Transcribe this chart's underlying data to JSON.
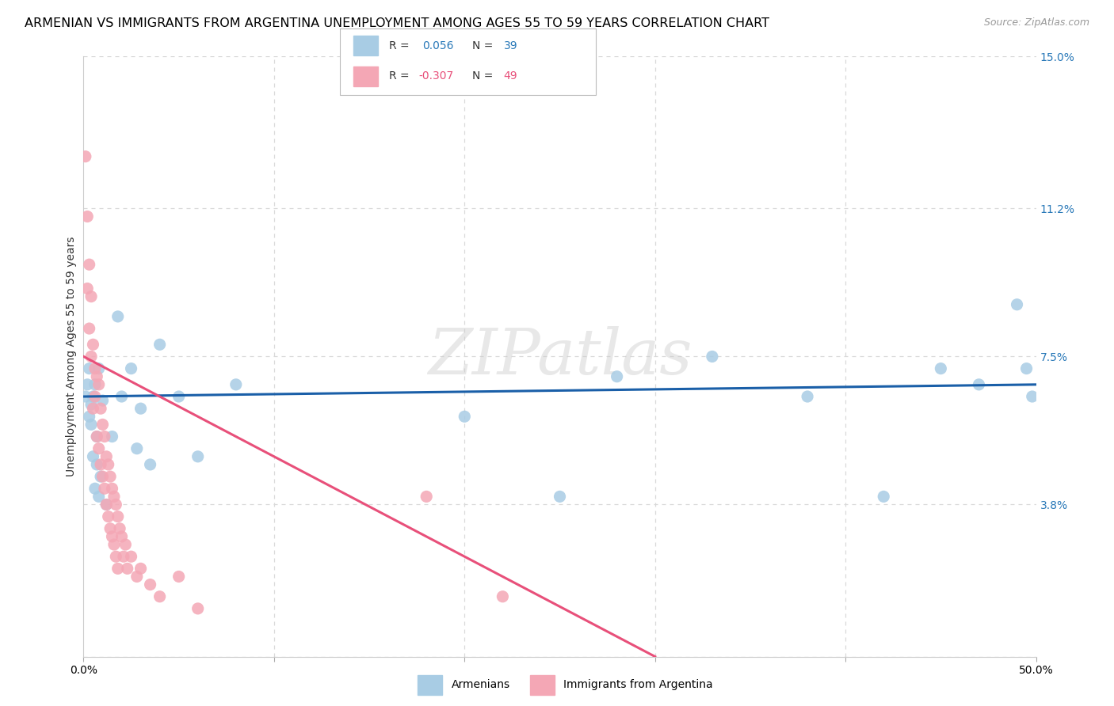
{
  "title": "ARMENIAN VS IMMIGRANTS FROM ARGENTINA UNEMPLOYMENT AMONG AGES 55 TO 59 YEARS CORRELATION CHART",
  "source": "Source: ZipAtlas.com",
  "ylabel": "Unemployment Among Ages 55 to 59 years",
  "xlim": [
    0.0,
    0.5
  ],
  "ylim": [
    0.0,
    0.15
  ],
  "xtick_positions": [
    0.0,
    0.1,
    0.2,
    0.3,
    0.4,
    0.5
  ],
  "xticklabels": [
    "0.0%",
    "",
    "",
    "",
    "",
    "50.0%"
  ],
  "yticks_right": [
    0.0,
    0.038,
    0.075,
    0.112,
    0.15
  ],
  "ytick_right_labels": [
    "",
    "3.8%",
    "7.5%",
    "11.2%",
    "15.0%"
  ],
  "background_color": "#ffffff",
  "grid_color": "#d9d9d9",
  "watermark": "ZIPatlas",
  "armenians_x": [
    0.001,
    0.002,
    0.003,
    0.003,
    0.004,
    0.004,
    0.005,
    0.005,
    0.006,
    0.006,
    0.007,
    0.007,
    0.008,
    0.008,
    0.009,
    0.01,
    0.012,
    0.015,
    0.018,
    0.02,
    0.025,
    0.028,
    0.03,
    0.035,
    0.04,
    0.05,
    0.06,
    0.08,
    0.2,
    0.25,
    0.28,
    0.33,
    0.38,
    0.42,
    0.45,
    0.47,
    0.49,
    0.495,
    0.498
  ],
  "armenians_y": [
    0.065,
    0.068,
    0.06,
    0.072,
    0.063,
    0.058,
    0.065,
    0.05,
    0.068,
    0.042,
    0.055,
    0.048,
    0.072,
    0.04,
    0.045,
    0.064,
    0.038,
    0.055,
    0.085,
    0.065,
    0.072,
    0.052,
    0.062,
    0.048,
    0.078,
    0.065,
    0.05,
    0.068,
    0.06,
    0.04,
    0.07,
    0.075,
    0.065,
    0.04,
    0.072,
    0.068,
    0.088,
    0.072,
    0.065
  ],
  "argentina_x": [
    0.001,
    0.002,
    0.002,
    0.003,
    0.003,
    0.004,
    0.004,
    0.005,
    0.005,
    0.006,
    0.006,
    0.007,
    0.007,
    0.008,
    0.008,
    0.009,
    0.009,
    0.01,
    0.01,
    0.011,
    0.011,
    0.012,
    0.012,
    0.013,
    0.013,
    0.014,
    0.014,
    0.015,
    0.015,
    0.016,
    0.016,
    0.017,
    0.017,
    0.018,
    0.018,
    0.019,
    0.02,
    0.021,
    0.022,
    0.023,
    0.025,
    0.028,
    0.03,
    0.035,
    0.04,
    0.05,
    0.06,
    0.18,
    0.22
  ],
  "argentina_y": [
    0.125,
    0.11,
    0.092,
    0.098,
    0.082,
    0.09,
    0.075,
    0.078,
    0.062,
    0.072,
    0.065,
    0.07,
    0.055,
    0.068,
    0.052,
    0.062,
    0.048,
    0.058,
    0.045,
    0.055,
    0.042,
    0.05,
    0.038,
    0.048,
    0.035,
    0.045,
    0.032,
    0.042,
    0.03,
    0.04,
    0.028,
    0.038,
    0.025,
    0.035,
    0.022,
    0.032,
    0.03,
    0.025,
    0.028,
    0.022,
    0.025,
    0.02,
    0.022,
    0.018,
    0.015,
    0.02,
    0.012,
    0.04,
    0.015
  ],
  "armenian_color": "#a8cce4",
  "argentina_color": "#f4a7b5",
  "armenian_line_color": "#1a5fa8",
  "argentina_line_color": "#e8507a",
  "armenian_R": 0.056,
  "armenian_N": 39,
  "argentina_R": -0.307,
  "argentina_N": 49,
  "title_fontsize": 11.5,
  "axis_label_fontsize": 10,
  "tick_fontsize": 10,
  "legend_fontsize": 10,
  "source_fontsize": 9
}
